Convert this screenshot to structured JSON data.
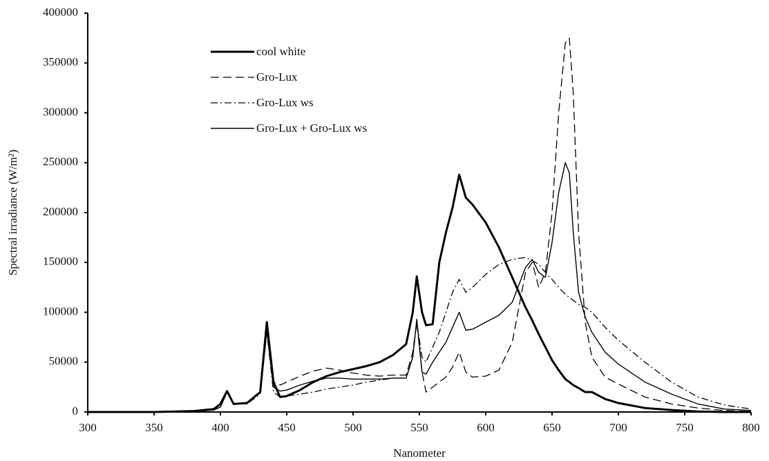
{
  "chart_data": {
    "type": "line",
    "x_label": "Nanometer",
    "y_label": "Spectral irradiance (W/m²)",
    "xlim": [
      300,
      800
    ],
    "xticks": [
      300,
      350,
      400,
      450,
      500,
      550,
      600,
      650,
      700,
      750,
      800
    ],
    "ylim": [
      0,
      400000
    ],
    "yticks": [
      0,
      50000,
      100000,
      150000,
      200000,
      250000,
      300000,
      350000,
      400000
    ],
    "grid": false,
    "legend": "upper-left",
    "x": [
      300,
      350,
      380,
      395,
      400,
      405,
      410,
      420,
      430,
      435,
      440,
      445,
      450,
      460,
      470,
      480,
      490,
      500,
      510,
      520,
      530,
      540,
      545,
      548,
      552,
      555,
      560,
      565,
      570,
      575,
      580,
      585,
      590,
      600,
      610,
      620,
      630,
      635,
      640,
      645,
      650,
      655,
      660,
      663,
      666,
      670,
      675,
      680,
      690,
      700,
      720,
      740,
      760,
      780,
      800
    ],
    "series": [
      {
        "name": "cool white",
        "color": "#000000",
        "line_style": "solid",
        "line_width": 3,
        "values": [
          0,
          0,
          1000,
          3000,
          8000,
          21000,
          8000,
          9000,
          20000,
          90000,
          30000,
          15000,
          16000,
          22000,
          30000,
          36000,
          40000,
          43000,
          46000,
          50000,
          57000,
          68000,
          100000,
          136000,
          100000,
          87000,
          88000,
          150000,
          180000,
          205000,
          238000,
          215000,
          208000,
          190000,
          165000,
          135000,
          105000,
          92000,
          78000,
          65000,
          52000,
          42000,
          33000,
          30000,
          27000,
          24000,
          20000,
          20000,
          13000,
          9000,
          4000,
          2000,
          500,
          0,
          0
        ]
      },
      {
        "name": "Gro-Lux",
        "color": "#000000",
        "line_style": "dashed",
        "line_width": 1.3,
        "values": [
          0,
          0,
          500,
          2000,
          5000,
          20000,
          8000,
          9000,
          20000,
          80000,
          30000,
          27000,
          30000,
          36000,
          41000,
          44000,
          42000,
          39000,
          37000,
          36000,
          37000,
          37000,
          60000,
          90000,
          40000,
          20000,
          25000,
          30000,
          35000,
          45000,
          60000,
          40000,
          35000,
          36000,
          42000,
          70000,
          140000,
          150000,
          125000,
          140000,
          200000,
          300000,
          370000,
          375000,
          320000,
          180000,
          90000,
          55000,
          35000,
          28000,
          15000,
          8000,
          4000,
          1500,
          500
        ]
      },
      {
        "name": "Gro-Lux ws",
        "color": "#000000",
        "line_style": "dashdot",
        "line_width": 1.3,
        "values": [
          0,
          0,
          500,
          2000,
          5000,
          20000,
          8000,
          8000,
          18000,
          80000,
          20000,
          15000,
          16000,
          18000,
          20000,
          23000,
          25000,
          27000,
          30000,
          32000,
          34000,
          34000,
          55000,
          90000,
          55000,
          50000,
          65000,
          80000,
          100000,
          120000,
          133000,
          120000,
          125000,
          138000,
          148000,
          153000,
          155000,
          152000,
          148000,
          140000,
          133000,
          125000,
          118000,
          115000,
          112000,
          108000,
          105000,
          100000,
          85000,
          72000,
          50000,
          30000,
          15000,
          7000,
          3000
        ]
      },
      {
        "name": "Gro-Lux + Gro-Lux ws",
        "color": "#000000",
        "line_style": "solid",
        "line_width": 1.4,
        "values": [
          0,
          0,
          500,
          2000,
          5000,
          20000,
          8000,
          9000,
          20000,
          82000,
          25000,
          21000,
          22000,
          27000,
          31000,
          34000,
          34000,
          33000,
          33000,
          33000,
          34000,
          34000,
          55000,
          93000,
          40000,
          38000,
          50000,
          60000,
          70000,
          85000,
          100000,
          82000,
          83000,
          90000,
          97000,
          110000,
          145000,
          153000,
          140000,
          135000,
          170000,
          220000,
          250000,
          240000,
          180000,
          120000,
          95000,
          80000,
          60000,
          48000,
          30000,
          18000,
          8000,
          3000,
          1500
        ]
      }
    ]
  }
}
